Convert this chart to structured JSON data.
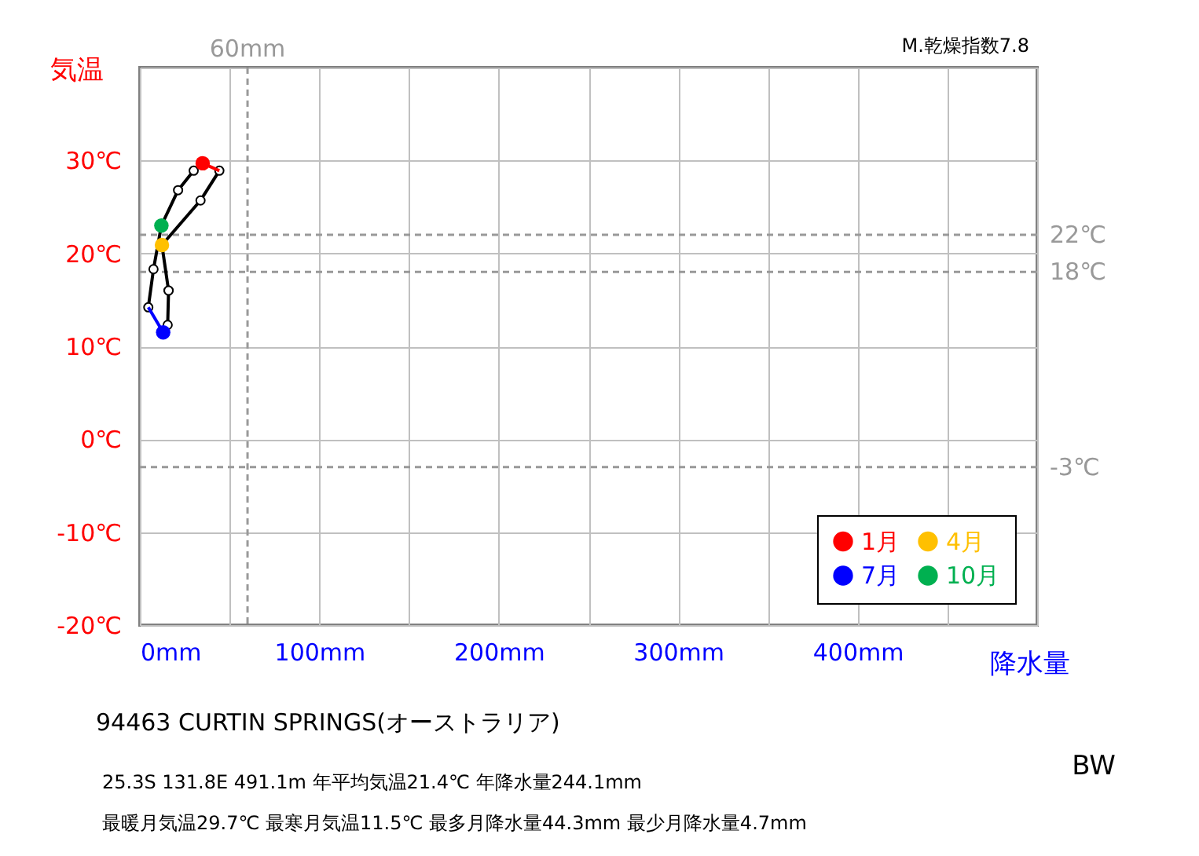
{
  "chart_data": {
    "type": "line",
    "xlabel": "降水量",
    "ylabel": "気温",
    "xlim": [
      0,
      500
    ],
    "ylim": [
      -20,
      40
    ],
    "xticks": [
      {
        "value": 0,
        "label": "0mm"
      },
      {
        "value": 50,
        "label": null
      },
      {
        "value": 100,
        "label": "100mm"
      },
      {
        "value": 150,
        "label": null
      },
      {
        "value": 200,
        "label": "200mm"
      },
      {
        "value": 250,
        "label": null
      },
      {
        "value": 300,
        "label": "300mm"
      },
      {
        "value": 350,
        "label": null
      },
      {
        "value": 400,
        "label": "400mm"
      },
      {
        "value": 450,
        "label": null
      },
      {
        "value": 500,
        "label": null
      }
    ],
    "yticks": [
      {
        "value": -20,
        "label": "-20℃"
      },
      {
        "value": -10,
        "label": "-10℃"
      },
      {
        "value": 0,
        "label": "0℃"
      },
      {
        "value": 10,
        "label": "10℃"
      },
      {
        "value": 20,
        "label": "20℃"
      },
      {
        "value": 30,
        "label": "30℃"
      },
      {
        "value": 40,
        "label": null
      }
    ],
    "grid": true,
    "legend": "bottom right",
    "series": [
      {
        "color": "#000000",
        "marker": "circle",
        "x": [
          44.3,
          33.8,
          12.3
        ],
        "values": [
          28.9,
          25.7,
          20.9
        ]
      },
      {
        "color": "#000000",
        "marker": "circle",
        "x": [
          12.3,
          16
        ],
        "values": [
          20.9,
          16.0
        ]
      },
      {
        "color": "#000000",
        "marker": "circle",
        "x": [
          16,
          15.5,
          13
        ],
        "values": [
          16.0,
          12.3,
          11.5
        ]
      },
      {
        "color": "#000000",
        "marker": "circle",
        "x": [
          4.7,
          7.6,
          12,
          21.3,
          30,
          35
        ],
        "values": [
          14.2,
          18.3,
          23.0,
          26.8,
          28.9,
          29.7
        ]
      },
      {
        "color": "#0000ff",
        "x": [
          13,
          4.7
        ],
        "values": [
          11.5,
          14.2
        ]
      },
      {
        "color": "#ff0000",
        "x": [
          35,
          44.3
        ],
        "values": [
          29.7,
          28.9
        ]
      },
      {
        "type": "scatter",
        "name": "1月",
        "color": "#ff0000",
        "x": [
          35
        ],
        "values": [
          29.7
        ]
      },
      {
        "type": "scatter",
        "name": "4月",
        "color": "#ffc000",
        "x": [
          12.3
        ],
        "values": [
          20.9
        ]
      },
      {
        "type": "scatter",
        "name": "7月",
        "color": "#0000ff",
        "x": [
          13
        ],
        "values": [
          11.5
        ]
      },
      {
        "type": "scatter",
        "name": "10月",
        "color": "#00b050",
        "x": [
          12
        ],
        "values": [
          23.0
        ]
      }
    ],
    "ref_lines": [
      {
        "axis": "x",
        "value": 60,
        "label": "60mm",
        "color": "#999999",
        "line_style": "dashed"
      },
      {
        "axis": "y",
        "value": 22,
        "label": "22℃",
        "color": "#999999",
        "line_style": "dashed"
      },
      {
        "axis": "y",
        "value": 18,
        "label": "18℃",
        "color": "#999999",
        "line_style": "dashed"
      },
      {
        "axis": "y",
        "value": -3,
        "label": "-3℃",
        "color": "#999999",
        "line_style": "dashed"
      }
    ],
    "annotations": [
      "M.乾燥指数7.8",
      "94463  CURTIN SPRINGS(オーストラリア)",
      "25.3S   131.8E 491.1m   年平均気温21.4℃ 年降水量244.1mm",
      "最暖月気温29.7℃ 最寒月気温11.5℃ 最多月降水量44.3mm 最少月降水量4.7mm",
      "BW"
    ]
  }
}
